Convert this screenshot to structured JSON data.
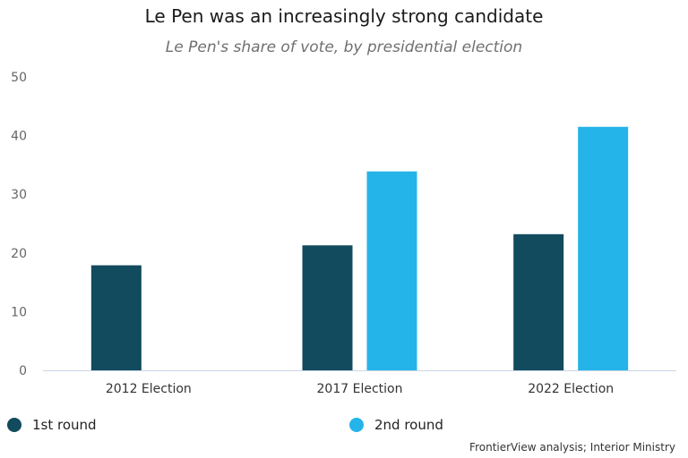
{
  "chart_data": {
    "type": "bar",
    "title": "Le Pen was an increasingly strong candidate",
    "subtitle": "Le Pen's share of vote, by presidential election",
    "categories": [
      "2012 Election",
      "2017 Election",
      "2022 Election"
    ],
    "series": [
      {
        "name": "1st round",
        "color": "#124a5e",
        "values": [
          17.9,
          21.3,
          23.2
        ]
      },
      {
        "name": "2nd round",
        "color": "#25b4e9",
        "values": [
          null,
          33.9,
          41.5
        ]
      }
    ],
    "ylim": [
      0,
      50
    ],
    "yticks": [
      0,
      10,
      20,
      30,
      40,
      50
    ],
    "xlabel": "",
    "ylabel": "",
    "grid": false,
    "legend_position": "bottom"
  },
  "source": "FrontierView analysis; Interior Ministry"
}
